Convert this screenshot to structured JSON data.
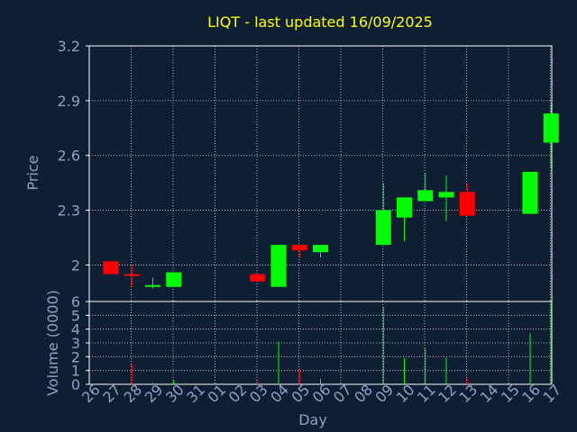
{
  "colors": {
    "background": "#0f1f33",
    "title": "#ffff00",
    "axis_text": "#8aa3c4",
    "frame": "#ffffff",
    "grid": "#ffffff",
    "up": "#00ff00",
    "down": "#ff0000"
  },
  "chart_data": {
    "type": "candlestick",
    "title": "LIQT - last updated 16/09/2025",
    "xlabel": "Day",
    "price_panel": {
      "ylabel": "Price",
      "ylim": [
        1.8,
        3.2
      ],
      "yticks": [
        "2",
        "2.3",
        "2.6",
        "2.9",
        "3.2"
      ]
    },
    "volume_panel": {
      "ylabel": "Volume (0000)",
      "ylim": [
        0,
        6
      ],
      "yticks": [
        "0",
        "1",
        "2",
        "3",
        "4",
        "5",
        "6"
      ]
    },
    "grid": true,
    "x_labels": [
      "26",
      "27",
      "28",
      "29",
      "30",
      "31",
      "01",
      "02",
      "03",
      "04",
      "05",
      "06",
      "07",
      "08",
      "09",
      "10",
      "11",
      "12",
      "13",
      "14",
      "15",
      "16",
      "17"
    ],
    "candles": [
      {
        "day": "26",
        "index": 0,
        "open": 2.02,
        "high": 2.02,
        "low": 1.95,
        "close": 1.95,
        "volume": 0.1
      },
      {
        "day": "27",
        "index": 1,
        "open": 1.95,
        "high": 2.0,
        "low": 1.88,
        "close": 1.94,
        "volume": 1.5
      },
      {
        "day": "28",
        "index": 2,
        "open": 1.88,
        "high": 1.93,
        "low": 1.87,
        "close": 1.89,
        "volume": 0.1
      },
      {
        "day": "29",
        "index": 3,
        "open": 1.88,
        "high": 1.96,
        "low": 1.88,
        "close": 1.96,
        "volume": 0.3
      },
      {
        "day": "02",
        "index": 7,
        "open": 1.95,
        "high": 1.95,
        "low": 1.91,
        "close": 1.91,
        "volume": 0.4
      },
      {
        "day": "03",
        "index": 8,
        "open": 1.88,
        "high": 2.11,
        "low": 1.88,
        "close": 2.11,
        "volume": 3.1
      },
      {
        "day": "04",
        "index": 9,
        "open": 2.11,
        "high": 2.11,
        "low": 2.04,
        "close": 2.08,
        "volume": 1.1
      },
      {
        "day": "05",
        "index": 10,
        "open": 2.07,
        "high": 2.11,
        "low": 2.04,
        "close": 2.11,
        "volume": 0.4
      },
      {
        "day": "08",
        "index": 13,
        "open": 2.11,
        "high": 2.45,
        "low": 2.11,
        "close": 2.3,
        "volume": 5.6
      },
      {
        "day": "09",
        "index": 14,
        "open": 2.26,
        "high": 2.37,
        "low": 2.13,
        "close": 2.37,
        "volume": 1.9
      },
      {
        "day": "10",
        "index": 15,
        "open": 2.35,
        "high": 2.5,
        "low": 2.35,
        "close": 2.41,
        "volume": 2.6
      },
      {
        "day": "11",
        "index": 16,
        "open": 2.37,
        "high": 2.49,
        "low": 2.24,
        "close": 2.4,
        "volume": 1.9
      },
      {
        "day": "12",
        "index": 17,
        "open": 2.4,
        "high": 2.45,
        "low": 2.27,
        "close": 2.27,
        "volume": 0.5
      },
      {
        "day": "15",
        "index": 20,
        "open": 2.28,
        "high": 2.51,
        "low": 2.28,
        "close": 2.51,
        "volume": 3.7
      },
      {
        "day": "16",
        "index": 21,
        "open": 2.67,
        "high": 2.88,
        "low": 2.53,
        "close": 2.83,
        "volume": 6.0
      }
    ]
  }
}
